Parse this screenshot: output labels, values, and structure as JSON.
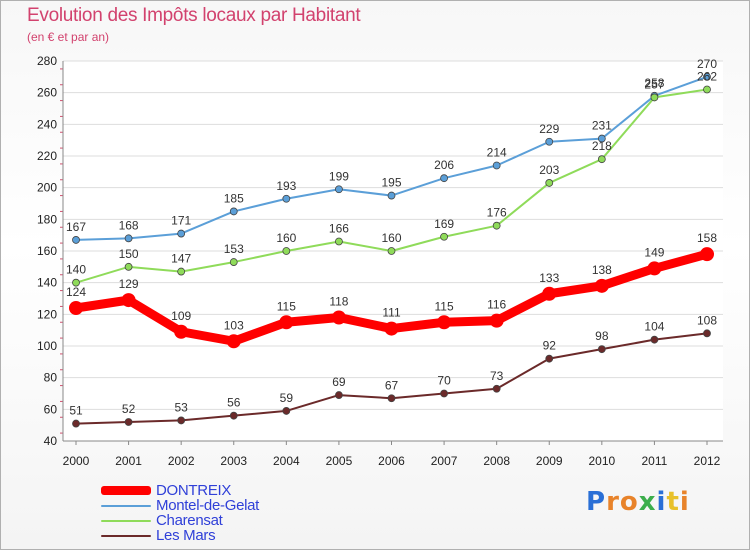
{
  "title": "Evolution des Impôts locaux par Habitant",
  "subtitle": "(en € et par an)",
  "logo": {
    "text": "Proxiti",
    "letter_colors": [
      "#2a6fd6",
      "#e8832a",
      "#e8832a",
      "#3cae4c",
      "#2a6fd6",
      "#e8c12a",
      "#e8832a"
    ]
  },
  "chart_data": {
    "type": "line",
    "x": [
      "2000",
      "2001",
      "2002",
      "2003",
      "2004",
      "2005",
      "2006",
      "2007",
      "2008",
      "2009",
      "2010",
      "2011",
      "2012"
    ],
    "ylim": [
      40,
      280
    ],
    "yticks": [
      40,
      60,
      80,
      100,
      120,
      140,
      160,
      180,
      200,
      220,
      240,
      260,
      280
    ],
    "grid": "horizontal",
    "legend_position": "bottom-left",
    "series": [
      {
        "name": "Montel-de-Gelat",
        "color": "#5b9fd8",
        "values": [
          167,
          168,
          171,
          185,
          193,
          199,
          195,
          206,
          214,
          229,
          231,
          258,
          270
        ]
      },
      {
        "name": "Charensat",
        "color": "#8fdb5a",
        "values": [
          140,
          150,
          147,
          153,
          160,
          166,
          160,
          169,
          176,
          203,
          218,
          257,
          262
        ]
      },
      {
        "name": "DONTREIX",
        "color": "#ff0000",
        "highlight": true,
        "values": [
          124,
          129,
          109,
          103,
          115,
          118,
          111,
          115,
          116,
          133,
          138,
          149,
          158
        ]
      },
      {
        "name": "Les Mars",
        "color": "#6b2a2a",
        "values": [
          51,
          52,
          53,
          56,
          59,
          69,
          67,
          70,
          73,
          92,
          98,
          104,
          108
        ]
      }
    ],
    "legend_order": [
      "DONTREIX",
      "Montel-de-Gelat",
      "Charensat",
      "Les Mars"
    ]
  }
}
